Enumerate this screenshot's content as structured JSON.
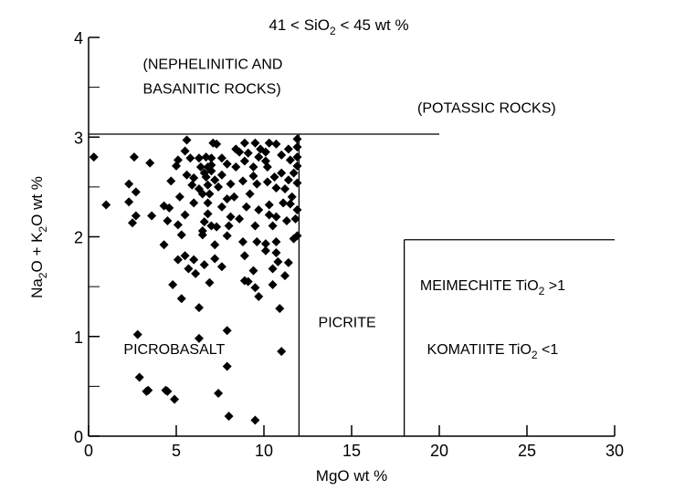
{
  "chart_data": {
    "type": "scatter",
    "title_parts": [
      "41 < SiO",
      "2",
      " < 45 wt %"
    ],
    "xlabel": "MgO wt %",
    "ylabel_parts": [
      "Na",
      "2",
      "O + K",
      "2",
      "O wt %"
    ],
    "xlim": [
      0,
      30
    ],
    "ylim": [
      0,
      4
    ],
    "xticks": [
      "0",
      "5",
      "10",
      "15",
      "20",
      "25",
      "30"
    ],
    "yticks": [
      "0",
      "1",
      "2",
      "3",
      "4"
    ],
    "grid": false,
    "boundaries": [
      {
        "name": "upper-boundary",
        "points": [
          [
            0,
            3.03
          ],
          [
            20,
            3.03
          ]
        ]
      },
      {
        "name": "picrite-boundary",
        "points": [
          [
            12,
            0
          ],
          [
            12,
            3.03
          ]
        ]
      },
      {
        "name": "komatiite-top-boundary",
        "points": [
          [
            18,
            1.97
          ],
          [
            30,
            1.97
          ]
        ]
      },
      {
        "name": "komatiite-left-boundary",
        "points": [
          [
            18,
            0
          ],
          [
            18,
            1.97
          ]
        ]
      }
    ],
    "annotations": [
      {
        "parts": [
          "(NEPHELINITIC AND"
        ],
        "x": 3.1,
        "y": 3.74
      },
      {
        "parts": [
          "BASANITIC ROCKS)"
        ],
        "x": 3.1,
        "y": 3.49
      },
      {
        "parts": [
          "(POTASSIC ROCKS)"
        ],
        "x": 18.75,
        "y": 3.3
      },
      {
        "parts": [
          "MEIMECHITE TiO",
          "2",
          " >1"
        ],
        "x": 18.9,
        "y": 1.52
      },
      {
        "parts": [
          "PICRITE"
        ],
        "x": 13.1,
        "y": 1.15
      },
      {
        "parts": [
          "PICROBASALT"
        ],
        "x": 2.0,
        "y": 0.88
      },
      {
        "parts": [
          "KOMATIITE TiO",
          "2",
          " <1"
        ],
        "x": 19.3,
        "y": 0.88
      }
    ],
    "points": [
      [
        2.8,
        1.02
      ],
      [
        6.3,
        0.98
      ],
      [
        7.9,
        1.06
      ],
      [
        11.0,
        0.85
      ],
      [
        7.9,
        0.7
      ],
      [
        2.9,
        0.59
      ],
      [
        3.3,
        0.45
      ],
      [
        3.4,
        0.46
      ],
      [
        4.4,
        0.46
      ],
      [
        4.5,
        0.45
      ],
      [
        4.9,
        0.37
      ],
      [
        7.4,
        0.43
      ],
      [
        8.0,
        0.2
      ],
      [
        9.5,
        0.16
      ],
      [
        6.3,
        1.29
      ],
      [
        10.9,
        1.28
      ],
      [
        0.3,
        2.8
      ],
      [
        2.6,
        2.8
      ],
      [
        3.5,
        2.74
      ],
      [
        2.3,
        2.53
      ],
      [
        2.7,
        2.45
      ],
      [
        1.0,
        2.32
      ],
      [
        2.3,
        2.35
      ],
      [
        2.7,
        2.21
      ],
      [
        2.5,
        2.14
      ],
      [
        3.6,
        2.21
      ],
      [
        4.3,
        2.31
      ],
      [
        4.6,
        2.29
      ],
      [
        4.5,
        2.16
      ],
      [
        4.3,
        1.92
      ],
      [
        5.1,
        2.12
      ],
      [
        5.3,
        2.02
      ],
      [
        5.5,
        2.22
      ],
      [
        4.8,
        1.52
      ],
      [
        5.3,
        1.38
      ],
      [
        5.1,
        1.77
      ],
      [
        5.5,
        1.81
      ],
      [
        6.0,
        1.77
      ],
      [
        5.7,
        1.68
      ],
      [
        6.1,
        1.63
      ],
      [
        6.6,
        1.72
      ],
      [
        6.9,
        1.54
      ],
      [
        7.2,
        1.78
      ],
      [
        7.6,
        1.7
      ],
      [
        7.2,
        1.92
      ],
      [
        6.5,
        2.02
      ],
      [
        7.9,
        2.01
      ],
      [
        8.8,
        1.95
      ],
      [
        8.9,
        1.81
      ],
      [
        9.4,
        1.66
      ],
      [
        8.9,
        1.56
      ],
      [
        9.1,
        1.55
      ],
      [
        9.5,
        1.49
      ],
      [
        9.7,
        1.4
      ],
      [
        10.5,
        1.52
      ],
      [
        11.2,
        1.61
      ],
      [
        11.4,
        1.74
      ],
      [
        10.5,
        1.68
      ],
      [
        10.8,
        1.75
      ],
      [
        10.7,
        1.84
      ],
      [
        10.1,
        1.86
      ],
      [
        9.6,
        1.95
      ],
      [
        10.1,
        1.93
      ],
      [
        10.7,
        1.95
      ],
      [
        11.7,
        1.98
      ],
      [
        11.9,
        2.01
      ],
      [
        11.9,
        2.27
      ],
      [
        11.8,
        2.18
      ],
      [
        11.3,
        2.16
      ],
      [
        10.7,
        2.2
      ],
      [
        10.5,
        2.11
      ],
      [
        10.3,
        2.22
      ],
      [
        9.5,
        2.11
      ],
      [
        10.3,
        2.32
      ],
      [
        9.7,
        2.27
      ],
      [
        11.1,
        2.34
      ],
      [
        11.5,
        2.33
      ],
      [
        8.6,
        2.18
      ],
      [
        8.1,
        2.2
      ],
      [
        8.0,
        2.11
      ],
      [
        7.3,
        2.1
      ],
      [
        7.0,
        2.11
      ],
      [
        6.6,
        2.15
      ],
      [
        6.8,
        2.23
      ],
      [
        6.5,
        2.06
      ],
      [
        6.0,
        2.34
      ],
      [
        6.8,
        2.34
      ],
      [
        7.6,
        2.3
      ],
      [
        7.9,
        2.38
      ],
      [
        9.2,
        2.43
      ],
      [
        10.2,
        2.55
      ],
      [
        10.7,
        2.49
      ],
      [
        11.2,
        2.48
      ],
      [
        11.9,
        2.54
      ],
      [
        11.4,
        2.57
      ],
      [
        11.0,
        2.64
      ],
      [
        11.7,
        2.64
      ],
      [
        11.9,
        2.71
      ],
      [
        11.9,
        2.8
      ],
      [
        11.9,
        2.9
      ],
      [
        11.9,
        2.98
      ],
      [
        11.4,
        2.88
      ],
      [
        11.5,
        2.77
      ],
      [
        11.0,
        2.82
      ],
      [
        10.3,
        2.94
      ],
      [
        10.7,
        2.93
      ],
      [
        10.1,
        2.85
      ],
      [
        10.1,
        2.76
      ],
      [
        10.2,
        2.7
      ],
      [
        9.5,
        2.94
      ],
      [
        8.9,
        2.94
      ],
      [
        8.4,
        2.88
      ],
      [
        9.1,
        2.84
      ],
      [
        8.9,
        2.76
      ],
      [
        9.4,
        2.7
      ],
      [
        9.4,
        2.61
      ],
      [
        9.6,
        2.53
      ],
      [
        8.8,
        2.56
      ],
      [
        8.4,
        2.7
      ],
      [
        8.1,
        2.53
      ],
      [
        7.3,
        2.93
      ],
      [
        7.1,
        2.94
      ],
      [
        5.6,
        2.97
      ],
      [
        5.5,
        2.86
      ],
      [
        5.1,
        2.77
      ],
      [
        5.0,
        2.71
      ],
      [
        5.8,
        2.79
      ],
      [
        6.3,
        2.79
      ],
      [
        6.7,
        2.8
      ],
      [
        7.0,
        2.79
      ],
      [
        7.6,
        2.79
      ],
      [
        7.9,
        2.73
      ],
      [
        6.8,
        2.7
      ],
      [
        7.0,
        2.66
      ],
      [
        6.6,
        2.64
      ],
      [
        7.6,
        2.62
      ],
      [
        5.6,
        2.62
      ],
      [
        4.7,
        2.56
      ],
      [
        6.0,
        2.59
      ],
      [
        5.9,
        2.52
      ],
      [
        6.3,
        2.48
      ],
      [
        6.5,
        2.43
      ],
      [
        6.8,
        2.52
      ],
      [
        6.9,
        2.43
      ],
      [
        7.4,
        2.5
      ],
      [
        9.7,
        2.8
      ],
      [
        6.4,
        2.7
      ],
      [
        6.7,
        2.6
      ],
      [
        7.2,
        2.57
      ],
      [
        7.0,
        2.72
      ],
      [
        8.6,
        2.85
      ],
      [
        9.8,
        2.88
      ],
      [
        10.6,
        2.6
      ],
      [
        11.6,
        2.4
      ],
      [
        8.3,
        2.4
      ],
      [
        9.0,
        2.3
      ],
      [
        5.2,
        2.4
      ]
    ]
  }
}
